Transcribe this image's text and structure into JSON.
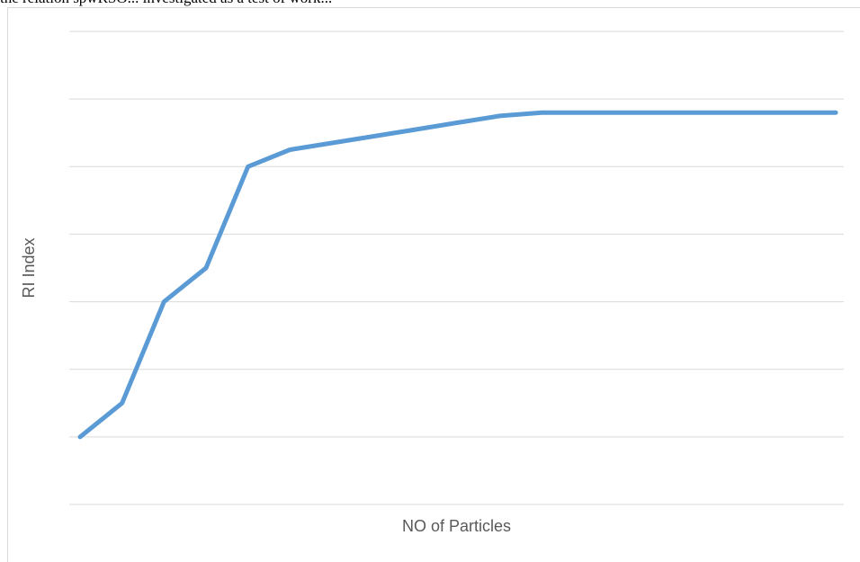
{
  "page": {
    "clipped_text": "the relation spwRSO... investigated as a test of work..."
  },
  "chart_data": {
    "type": "line",
    "title": "",
    "xlabel": "NO of Particles",
    "ylabel": "RI Index",
    "grid": true,
    "legend": "none",
    "ylim": [
      0,
      7
    ],
    "x": [
      1,
      2,
      3,
      4,
      5,
      6,
      7,
      8,
      9,
      10,
      11,
      12,
      13,
      14,
      15,
      16,
      17,
      18,
      19
    ],
    "series": [
      {
        "name": "",
        "color": "#5b9bd5",
        "values": [
          1.0,
          1.5,
          3.0,
          3.5,
          5.0,
          5.25,
          5.35,
          5.45,
          5.55,
          5.65,
          5.75,
          5.8,
          5.8,
          5.8,
          5.8,
          5.8,
          5.8,
          5.8,
          5.8
        ]
      }
    ]
  }
}
